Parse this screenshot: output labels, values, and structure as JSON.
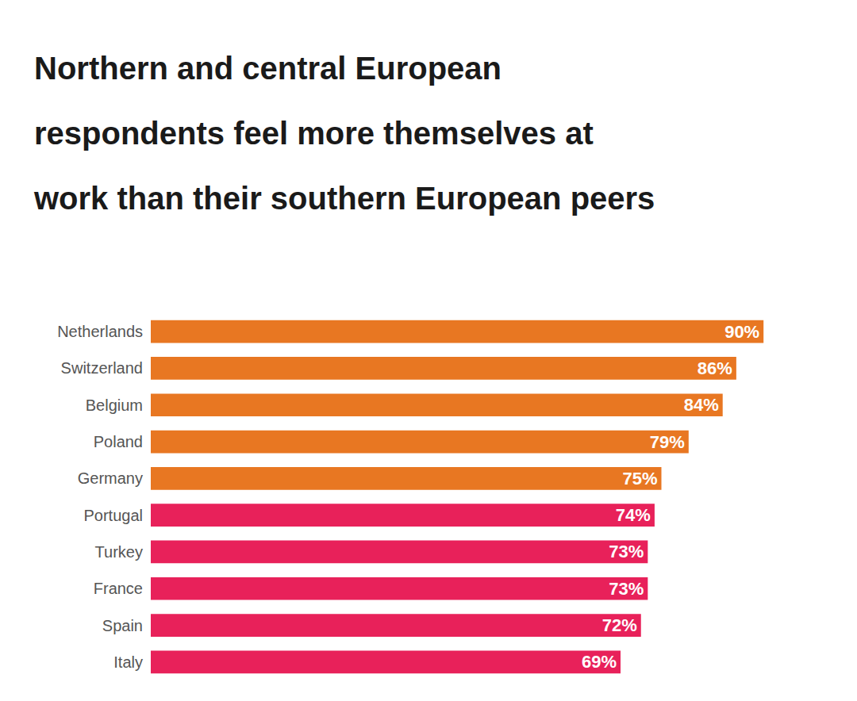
{
  "chart_data": {
    "type": "bar",
    "orientation": "horizontal",
    "title": "Northern and central European\nrespondents feel more themselves at\nwork than their southern European peers",
    "categories": [
      "Netherlands",
      "Switzerland",
      "Belgium",
      "Poland",
      "Germany",
      "Portugal",
      "Turkey",
      "France",
      "Spain",
      "Italy"
    ],
    "values": [
      90,
      86,
      84,
      79,
      75,
      74,
      73,
      73,
      72,
      69
    ],
    "value_labels": [
      "90%",
      "86%",
      "84%",
      "79%",
      "75%",
      "74%",
      "73%",
      "73%",
      "72%",
      "69%"
    ],
    "colors": [
      "#E87722",
      "#E87722",
      "#E87722",
      "#E87722",
      "#E87722",
      "#E8215A",
      "#E8215A",
      "#E8215A",
      "#E8215A",
      "#E8215A"
    ],
    "xlim": [
      0,
      100
    ],
    "data_labels": true,
    "tick_labels": "y",
    "grid": false
  }
}
